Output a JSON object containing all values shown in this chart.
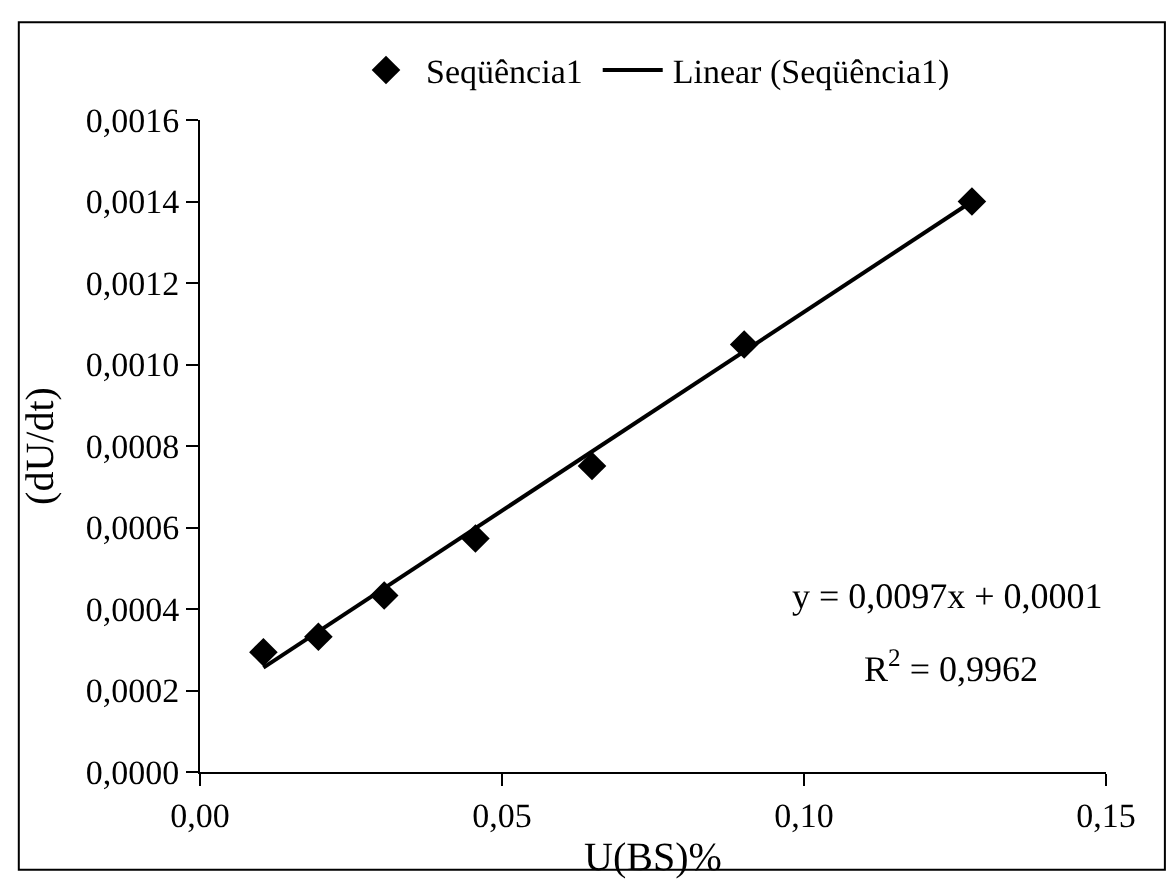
{
  "chart_data": {
    "type": "scatter",
    "xlabel": "U(BS)%",
    "ylabel": "(dU/dt)",
    "x": [
      0.0105,
      0.0196,
      0.0305,
      0.0456,
      0.0649,
      0.0901,
      0.1278
    ],
    "series": [
      {
        "name": "Seqüência1",
        "color": "#000000",
        "marker": "diamond",
        "values": [
          0.000294,
          0.000332,
          0.000433,
          0.000573,
          0.000751,
          0.001049,
          0.0014
        ]
      },
      {
        "name": "Linear (Seqüência1)",
        "type": "line",
        "color": "#000000",
        "marker": "none",
        "x": [
          0.0105,
          0.1278
        ],
        "values": [
          0.000256,
          0.0014
        ]
      }
    ],
    "xlim": [
      0,
      0.15
    ],
    "xticks": [
      {
        "value": 0,
        "label": "0,00"
      },
      {
        "value": 0.05,
        "label": "0,05"
      },
      {
        "value": 0.1,
        "label": "0,10"
      },
      {
        "value": 0.15,
        "label": "0,15"
      }
    ],
    "ylim": [
      0,
      0.0016
    ],
    "yticks": [
      {
        "value": 0,
        "label": "0,0000"
      },
      {
        "value": 0.0002,
        "label": "0,0002"
      },
      {
        "value": 0.0004,
        "label": "0,0004"
      },
      {
        "value": 0.0006,
        "label": "0,0006"
      },
      {
        "value": 0.0008,
        "label": "0,0008"
      },
      {
        "value": 0.001,
        "label": "0,0010"
      },
      {
        "value": 0.0012,
        "label": "0,0012"
      },
      {
        "value": 0.0014,
        "label": "0,0014"
      },
      {
        "value": 0.0016,
        "label": "0,0016"
      }
    ],
    "annotations": [
      "y = 0,0097x + 0,0001",
      "R$^{2}$ = 0,9962"
    ],
    "legend": "top"
  }
}
